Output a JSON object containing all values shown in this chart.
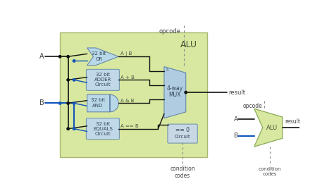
{
  "outer_bg": "#ffffff",
  "alu_box_color": "#d8e8a0",
  "alu_box_ec": "#aab870",
  "or_gate_color": "#b8d8e8",
  "adder_box_color": "#c0d8e8",
  "mux_color": "#b0cce0",
  "zero_box_color": "#c8d8e4",
  "mini_alu_color": "#d8e8a0",
  "title": "ALU",
  "opcode_label": "opcode",
  "result_label": "result",
  "condition_codes_label": "condition\ncodes",
  "a_label": "A",
  "b_label": "B",
  "black": "#111111",
  "blue": "#1155bb",
  "gray": "#888888",
  "dark": "#444444",
  "ec_gate": "#6688aa",
  "ec_box": "#7799aa",
  "ec_mini": "#88aa55"
}
